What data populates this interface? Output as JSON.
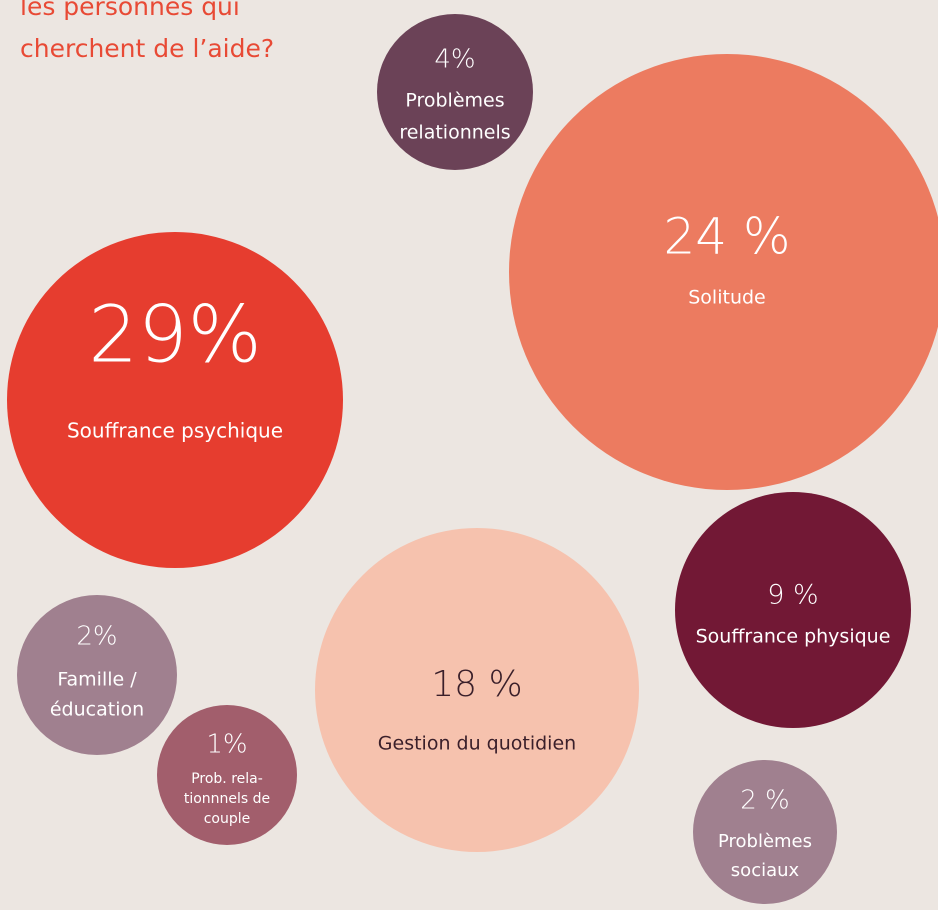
{
  "chart_data": {
    "type": "bubble",
    "title": [
      "les personnes qui",
      "cherchent de l’aide?"
    ],
    "categories": [
      [
        "Souffrance psychique"
      ],
      [
        "Solitude"
      ],
      [
        "Problèmes",
        "relationnels"
      ],
      [
        "Souffrance physique"
      ],
      [
        "Gestion du quotidien"
      ],
      [
        "Famille /",
        "éducation"
      ],
      [
        "Prob. rela-",
        "tionnnels de",
        "couple"
      ],
      [
        "Problèmes",
        "sociaux"
      ]
    ],
    "values": [
      29,
      24,
      4,
      9,
      18,
      2,
      1,
      2
    ],
    "value_labels": [
      "29%",
      "24 %",
      "4%",
      "9 %",
      "18 %",
      "2%",
      "1%",
      "2 %"
    ],
    "colors": [
      "#e63d2f",
      "#ec7b60",
      "#6b4257",
      "#721835",
      "#f6c2ae",
      "#a0808f",
      "#a25e6c",
      "#a0808f"
    ]
  }
}
